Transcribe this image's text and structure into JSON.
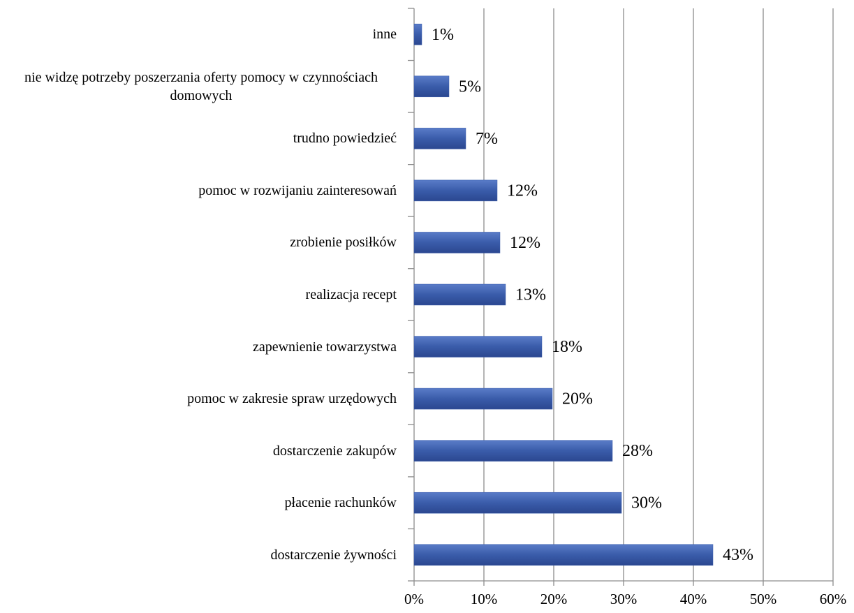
{
  "chart_data": {
    "type": "bar",
    "orientation": "horizontal",
    "categories": [
      "inne",
      "nie widzę potrzeby poszerzania oferty pomocy w czynnościach domowych",
      "trudno powiedzieć",
      "pomoc w rozwijaniu zainteresowań",
      "zrobienie posiłków",
      "realizacja recept",
      "zapewnienie towarzystwa",
      "pomoc w zakresie spraw urzędowych",
      "dostarczenie zakupów",
      "płacenie rachunków",
      "dostarczenie żywności"
    ],
    "values": [
      1.1,
      5.0,
      7.4,
      11.9,
      12.3,
      13.1,
      18.3,
      19.8,
      28.4,
      29.7,
      42.8
    ],
    "value_labels": [
      "1%",
      "5%",
      "7%",
      "12%",
      "12%",
      "13%",
      "18%",
      "20%",
      "28%",
      "30%",
      "43%"
    ],
    "color": "#3a5caa",
    "xlim": [
      0,
      60
    ],
    "xticks": [
      {
        "value": 0,
        "label": "0%"
      },
      {
        "value": 10,
        "label": "10%"
      },
      {
        "value": 20,
        "label": "20%"
      },
      {
        "value": 30,
        "label": "30%"
      },
      {
        "value": 40,
        "label": "40%"
      },
      {
        "value": 50,
        "label": "50%"
      },
      {
        "value": 60,
        "label": "60%"
      }
    ],
    "grid": true
  }
}
